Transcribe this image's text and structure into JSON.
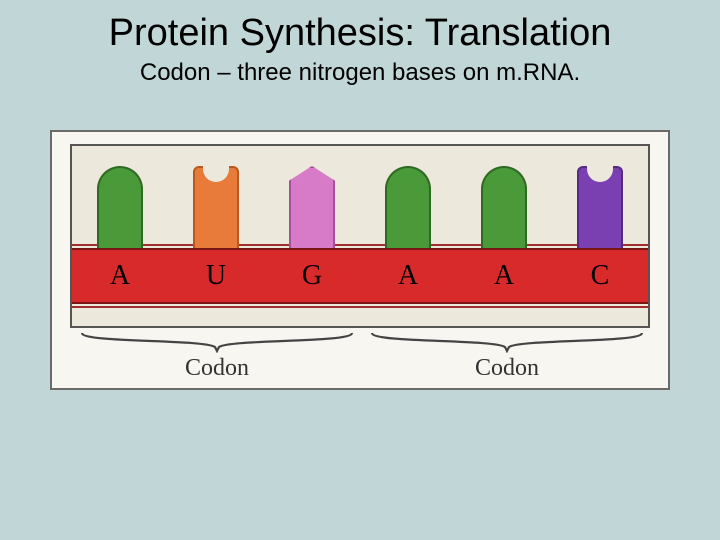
{
  "title": {
    "text": "Protein Synthesis: Translation",
    "fontsize": 38
  },
  "subtitle": {
    "text": "Codon – three nitrogen bases on m.RNA.",
    "fontsize": 24
  },
  "colors": {
    "page_bg": "#c1d6d6",
    "panel_bg": "#f8f6f0",
    "panel_border": "#6a6a6a",
    "inner_bg": "#ece8dc",
    "inner_border": "#555555",
    "strip_fill": "#d82a2a",
    "strip_edge": "#7a1818",
    "brace_stroke": "#444444"
  },
  "bases": [
    {
      "letter": "A",
      "shape": "round",
      "fill": "#4a9a3a",
      "edge": "#2d6a22"
    },
    {
      "letter": "U",
      "shape": "notch",
      "fill": "#e87a3a",
      "edge": "#b85a20"
    },
    {
      "letter": "G",
      "shape": "point",
      "fill": "#d77ac8",
      "edge": "#a84f9a"
    },
    {
      "letter": "A",
      "shape": "round",
      "fill": "#4a9a3a",
      "edge": "#2d6a22"
    },
    {
      "letter": "A",
      "shape": "round",
      "fill": "#4a9a3a",
      "edge": "#2d6a22"
    },
    {
      "letter": "C",
      "shape": "notch",
      "fill": "#7a3fb0",
      "edge": "#552a80"
    }
  ],
  "base_fontsize": 28,
  "codons": [
    {
      "label": "Codon",
      "start": 0,
      "end": 2
    },
    {
      "label": "Codon",
      "start": 3,
      "end": 5
    }
  ],
  "codon_fontsize": 24
}
